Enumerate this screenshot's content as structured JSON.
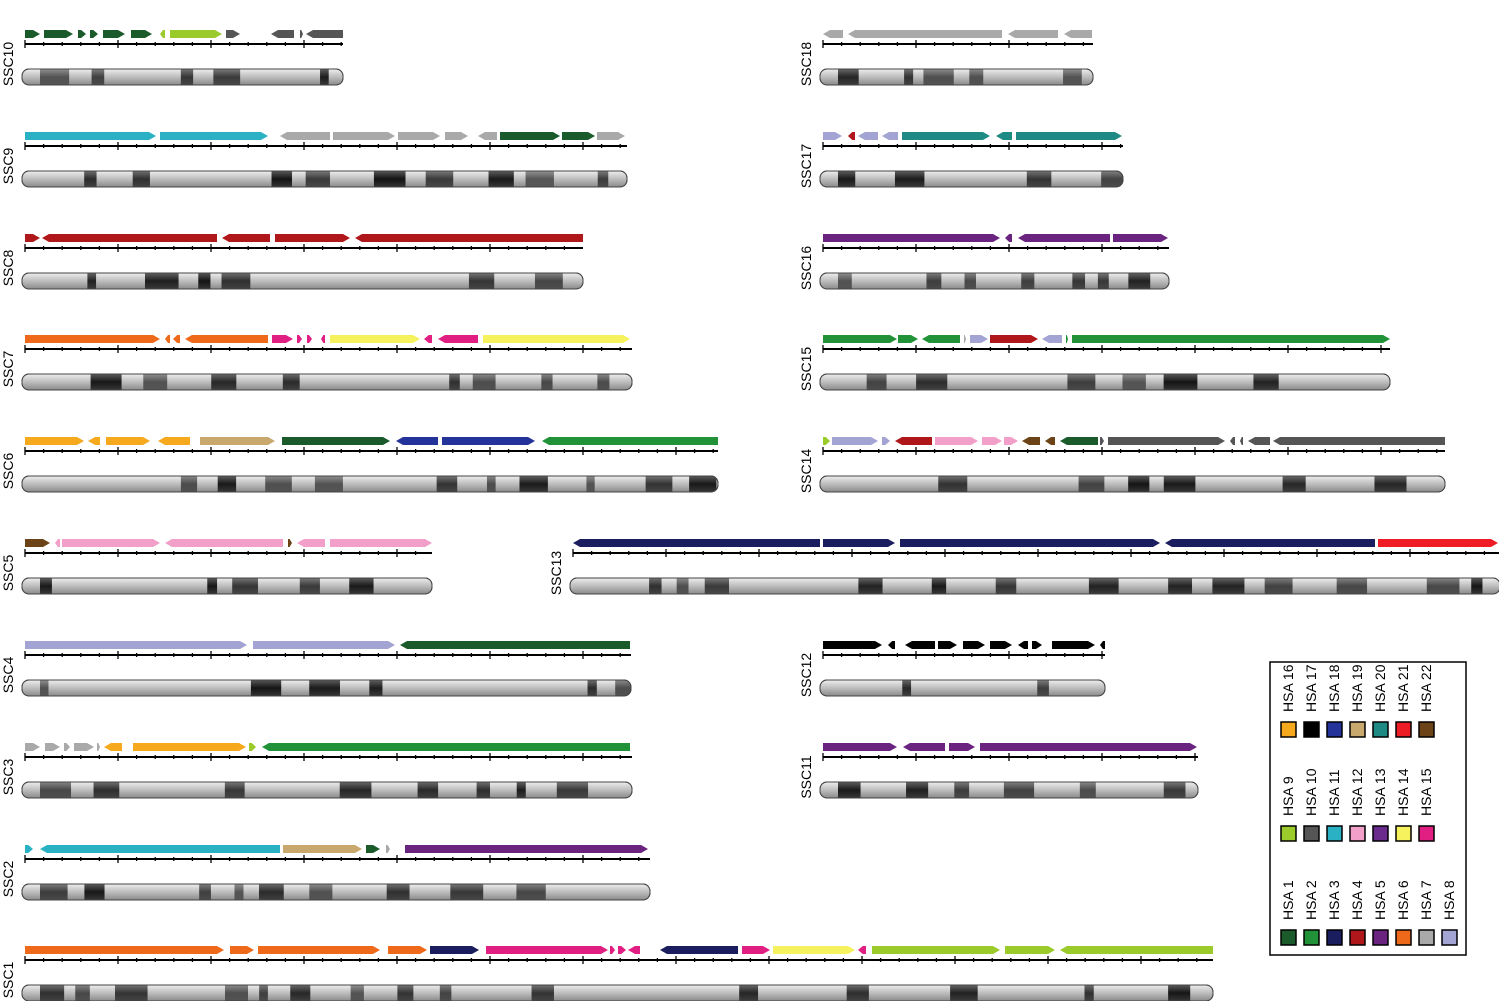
{
  "title_hsa_legend": [
    {
      "label": "HSA 1",
      "number": 1,
      "color": "#1b5a2a"
    },
    {
      "label": "HSA 2",
      "number": 2,
      "color": "#229238"
    },
    {
      "label": "HSA 3",
      "number": 3,
      "color": "#1a1d5e"
    },
    {
      "label": "HSA 4",
      "number": 4,
      "color": "#b0171b"
    },
    {
      "label": "HSA 5",
      "number": 5,
      "color": "#6a2480"
    },
    {
      "label": "HSA 6",
      "number": 6,
      "color": "#ee6a1a"
    },
    {
      "label": "HSA 7",
      "number": 7,
      "color": "#a9a9a9"
    },
    {
      "label": "HSA 8",
      "number": 8,
      "color": "#a3a3d4"
    },
    {
      "label": "HSA 9",
      "number": 9,
      "color": "#9acb2a"
    },
    {
      "label": "HSA 10",
      "number": 10,
      "color": "#555555"
    },
    {
      "label": "HSA 11",
      "number": 11,
      "color": "#2ab2c4"
    },
    {
      "label": "HSA 12",
      "number": 12,
      "color": "#f29fc9"
    },
    {
      "label": "HSA 13",
      "number": 13,
      "color": "#6b2b8c"
    },
    {
      "label": "HSA 14",
      "number": 14,
      "color": "#f6f25e"
    },
    {
      "label": "HSA 15",
      "number": 15,
      "color": "#e11f83"
    },
    {
      "label": "HSA 16",
      "number": 16,
      "color": "#f6a91d"
    },
    {
      "label": "HSA 17",
      "number": 17,
      "color": "#000000"
    },
    {
      "label": "HSA 18",
      "number": 18,
      "color": "#233399"
    },
    {
      "label": "HSA 19",
      "number": 19,
      "color": "#c9a86e"
    },
    {
      "label": "HSA 20",
      "number": 20,
      "color": "#1d8b84"
    },
    {
      "label": "HSA 21",
      "number": 21,
      "color": "#ee1c24"
    },
    {
      "label": "HSA 22",
      "number": 22,
      "color": "#6b4316"
    }
  ],
  "chromosomes": [
    {
      "name": "SSC10",
      "length": 318,
      "blocks": [
        [
          1,
          0,
          15,
          "r"
        ],
        [
          1,
          19,
          48,
          "r"
        ],
        [
          1,
          53,
          61,
          "r"
        ],
        [
          1,
          65,
          73,
          "r"
        ],
        [
          1,
          78,
          100,
          "r"
        ],
        [
          1,
          106,
          127,
          "r"
        ],
        [
          9,
          135,
          140,
          "l"
        ],
        [
          9,
          145,
          197,
          "r"
        ],
        [
          10,
          201,
          215,
          "r"
        ],
        [
          10,
          246,
          269,
          "l"
        ],
        [
          10,
          275,
          278,
          "r"
        ],
        [
          10,
          281,
          318,
          "l"
        ]
      ]
    },
    {
      "name": "SSC9",
      "length": 602,
      "blocks": [
        [
          11,
          0,
          131,
          "r"
        ],
        [
          11,
          135,
          243,
          "r"
        ],
        [
          7,
          255,
          305,
          "l"
        ],
        [
          7,
          308,
          370,
          "r"
        ],
        [
          7,
          373,
          415,
          "r"
        ],
        [
          7,
          420,
          443,
          "r"
        ],
        [
          7,
          453,
          472,
          "l"
        ],
        [
          1,
          475,
          535,
          "r"
        ],
        [
          1,
          537,
          570,
          "r"
        ],
        [
          7,
          572,
          600,
          "r"
        ]
      ]
    },
    {
      "name": "SSC8",
      "length": 558,
      "blocks": [
        [
          4,
          0,
          15,
          "r"
        ],
        [
          4,
          17,
          192,
          "l"
        ],
        [
          4,
          197,
          245,
          "l"
        ],
        [
          4,
          250,
          325,
          "r"
        ],
        [
          4,
          330,
          558,
          "l"
        ]
      ]
    },
    {
      "name": "SSC7",
      "length": 607,
      "blocks": [
        [
          6,
          0,
          135,
          "r"
        ],
        [
          6,
          140,
          145,
          "l"
        ],
        [
          6,
          148,
          155,
          "l"
        ],
        [
          6,
          160,
          243,
          "l"
        ],
        [
          15,
          247,
          268,
          "r"
        ],
        [
          15,
          272,
          277,
          "r"
        ],
        [
          15,
          282,
          287,
          "r"
        ],
        [
          15,
          296,
          300,
          "l"
        ],
        [
          14,
          305,
          395,
          "r"
        ],
        [
          15,
          399,
          407,
          "l"
        ],
        [
          15,
          413,
          453,
          "l"
        ],
        [
          14,
          458,
          605,
          "r"
        ]
      ]
    },
    {
      "name": "SSC6",
      "length": 693,
      "blocks": [
        [
          16,
          0,
          59,
          "r"
        ],
        [
          16,
          63,
          75,
          "l"
        ],
        [
          16,
          81,
          125,
          "r"
        ],
        [
          16,
          133,
          165,
          "l"
        ],
        [
          19,
          175,
          250,
          "r"
        ],
        [
          1,
          257,
          365,
          "r"
        ],
        [
          18,
          371,
          413,
          "l"
        ],
        [
          18,
          417,
          510,
          "r"
        ],
        [
          2,
          517,
          693,
          "l"
        ]
      ]
    },
    {
      "name": "SSC5",
      "length": 407,
      "blocks": [
        [
          22,
          0,
          25,
          "r"
        ],
        [
          12,
          30,
          35,
          "l"
        ],
        [
          12,
          37,
          135,
          "r"
        ],
        [
          12,
          140,
          258,
          "l"
        ],
        [
          22,
          263,
          267,
          "r"
        ],
        [
          12,
          272,
          300,
          "l"
        ],
        [
          12,
          305,
          407,
          "r"
        ]
      ]
    },
    {
      "name": "SSC4",
      "length": 606,
      "blocks": [
        [
          8,
          0,
          222,
          "r"
        ],
        [
          8,
          228,
          370,
          "r"
        ],
        [
          1,
          375,
          605,
          "l"
        ]
      ]
    },
    {
      "name": "SSC3",
      "length": 607,
      "blocks": [
        [
          7,
          0,
          15,
          "r"
        ],
        [
          7,
          20,
          35,
          "r"
        ],
        [
          7,
          39,
          45,
          "r"
        ],
        [
          7,
          49,
          69,
          "r"
        ],
        [
          7,
          72,
          75,
          "r"
        ],
        [
          16,
          79,
          97,
          "l"
        ],
        [
          16,
          108,
          221,
          "r"
        ],
        [
          9,
          224,
          231,
          "r"
        ],
        [
          2,
          237,
          605,
          "l"
        ]
      ]
    },
    {
      "name": "SSC2",
      "length": 625,
      "blocks": [
        [
          11,
          0,
          8,
          "r"
        ],
        [
          11,
          15,
          255,
          "l"
        ],
        [
          19,
          258,
          337,
          "r"
        ],
        [
          1,
          341,
          355,
          "r"
        ],
        [
          7,
          361,
          365,
          "r"
        ],
        [
          5,
          380,
          623,
          "r"
        ]
      ]
    },
    {
      "name": "SSC1",
      "length": 1188,
      "blocks": [
        [
          6,
          0,
          199,
          "r"
        ],
        [
          6,
          205,
          229,
          "r"
        ],
        [
          6,
          233,
          355,
          "r"
        ],
        [
          6,
          363,
          402,
          "r"
        ],
        [
          3,
          405,
          454,
          "r"
        ],
        [
          15,
          461,
          583,
          "r"
        ],
        [
          15,
          585,
          590,
          "r"
        ],
        [
          15,
          593,
          601,
          "r"
        ],
        [
          15,
          603,
          615,
          "l"
        ],
        [
          3,
          635,
          713,
          "l"
        ],
        [
          15,
          717,
          745,
          "r"
        ],
        [
          14,
          748,
          830,
          "r"
        ],
        [
          15,
          833,
          841,
          "l"
        ],
        [
          9,
          847,
          975,
          "r"
        ],
        [
          9,
          980,
          1030,
          "r"
        ],
        [
          9,
          1035,
          1188,
          "l"
        ]
      ]
    },
    {
      "name": "SSC18",
      "length": 270,
      "blocks": [
        [
          7,
          0,
          20,
          "l"
        ],
        [
          7,
          25,
          179,
          "l"
        ],
        [
          7,
          185,
          235,
          "l"
        ],
        [
          7,
          241,
          269,
          "l"
        ]
      ]
    },
    {
      "name": "SSC17",
      "length": 300,
      "blocks": [
        [
          8,
          0,
          19,
          "r"
        ],
        [
          4,
          25,
          32,
          "l"
        ],
        [
          8,
          35,
          55,
          "l"
        ],
        [
          8,
          59,
          75,
          "l"
        ],
        [
          20,
          79,
          167,
          "r"
        ],
        [
          20,
          173,
          189,
          "l"
        ],
        [
          20,
          193,
          299,
          "r"
        ]
      ]
    },
    {
      "name": "SSC16",
      "length": 346,
      "blocks": [
        [
          5,
          0,
          177,
          "r"
        ],
        [
          5,
          182,
          189,
          "l"
        ],
        [
          5,
          195,
          287,
          "l"
        ],
        [
          5,
          290,
          345,
          "r"
        ]
      ]
    },
    {
      "name": "SSC15",
      "length": 567,
      "blocks": [
        [
          2,
          0,
          74,
          "r"
        ],
        [
          2,
          75,
          95,
          "r"
        ],
        [
          2,
          99,
          137,
          "l"
        ],
        [
          7,
          141,
          143,
          "r"
        ],
        [
          8,
          147,
          165,
          "r"
        ],
        [
          4,
          167,
          215,
          "r"
        ],
        [
          8,
          219,
          239,
          "l"
        ],
        [
          2,
          243,
          245,
          "r"
        ],
        [
          2,
          249,
          567,
          "r"
        ]
      ]
    },
    {
      "name": "SSC14",
      "length": 622,
      "blocks": [
        [
          9,
          0,
          7,
          "r"
        ],
        [
          8,
          9,
          55,
          "r"
        ],
        [
          8,
          59,
          67,
          "r"
        ],
        [
          4,
          72,
          109,
          "l"
        ],
        [
          12,
          112,
          155,
          "r"
        ],
        [
          12,
          159,
          179,
          "r"
        ],
        [
          12,
          181,
          195,
          "r"
        ],
        [
          22,
          199,
          217,
          "l"
        ],
        [
          22,
          222,
          232,
          "l"
        ],
        [
          1,
          237,
          275,
          "l"
        ],
        [
          10,
          277,
          281,
          "r"
        ],
        [
          10,
          285,
          402,
          "r"
        ],
        [
          10,
          407,
          412,
          "l"
        ],
        [
          10,
          417,
          420,
          "l"
        ],
        [
          10,
          425,
          447,
          "l"
        ],
        [
          10,
          450,
          622,
          "l"
        ]
      ]
    },
    {
      "name": "SSC13",
      "length": 927,
      "blocks": [
        [
          3,
          0,
          247,
          "l"
        ],
        [
          3,
          250,
          322,
          "r"
        ],
        [
          3,
          327,
          587,
          "r"
        ],
        [
          3,
          592,
          802,
          "l"
        ],
        [
          21,
          805,
          925,
          "r"
        ]
      ]
    },
    {
      "name": "SSC12",
      "length": 282,
      "blocks": [
        [
          17,
          0,
          59,
          "r"
        ],
        [
          17,
          65,
          72,
          "l"
        ],
        [
          17,
          82,
          112,
          "l"
        ],
        [
          17,
          115,
          134,
          "r"
        ],
        [
          17,
          140,
          162,
          "r"
        ],
        [
          17,
          167,
          189,
          "r"
        ],
        [
          17,
          195,
          205,
          "l"
        ],
        [
          17,
          209,
          219,
          "r"
        ],
        [
          17,
          229,
          272,
          "r"
        ],
        [
          17,
          277,
          282,
          "l"
        ]
      ]
    },
    {
      "name": "SSC11",
      "length": 375,
      "blocks": [
        [
          5,
          0,
          74,
          "r"
        ],
        [
          5,
          80,
          122,
          "l"
        ],
        [
          5,
          126,
          152,
          "r"
        ],
        [
          5,
          157,
          374,
          "r"
        ]
      ]
    }
  ]
}
